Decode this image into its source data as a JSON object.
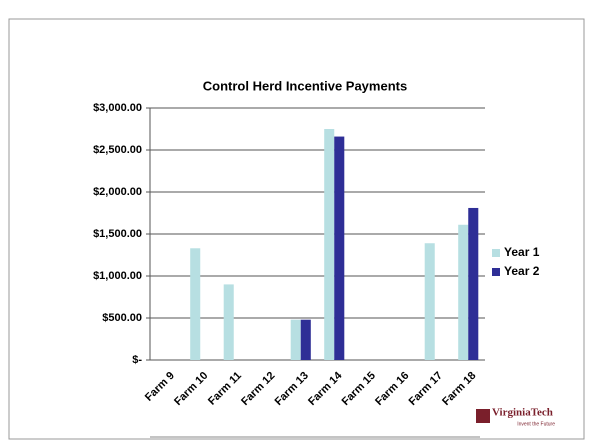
{
  "chart_data": {
    "type": "bar",
    "title": "Control Herd Incentive Payments",
    "categories": [
      "Farm 9",
      "Farm 10",
      "Farm 11",
      "Farm 12",
      "Farm 13",
      "Farm 14",
      "Farm 15",
      "Farm 16",
      "Farm 17",
      "Farm 18"
    ],
    "series": [
      {
        "name": "Year 1",
        "color": "#b7dfe2",
        "values": [
          0,
          1330,
          900,
          0,
          480,
          2750,
          0,
          0,
          1390,
          1610
        ]
      },
      {
        "name": "Year 2",
        "color": "#2e2e96",
        "values": [
          0,
          0,
          0,
          0,
          480,
          2660,
          0,
          0,
          0,
          1810
        ]
      }
    ],
    "ylim": [
      0,
      3000
    ],
    "yticks": [
      {
        "value": 0,
        "label": "$-"
      },
      {
        "value": 500,
        "label": "$500.00"
      },
      {
        "value": 1000,
        "label": "$1,000.00"
      },
      {
        "value": 1500,
        "label": "$1,500.00"
      },
      {
        "value": 2000,
        "label": "$2,000.00"
      },
      {
        "value": 2500,
        "label": "$2,500.00"
      },
      {
        "value": 3000,
        "label": "$3,000.00"
      }
    ],
    "grid": true,
    "legend": "right",
    "logo": "VirginiaTech",
    "tagline": "Invent the Future"
  }
}
